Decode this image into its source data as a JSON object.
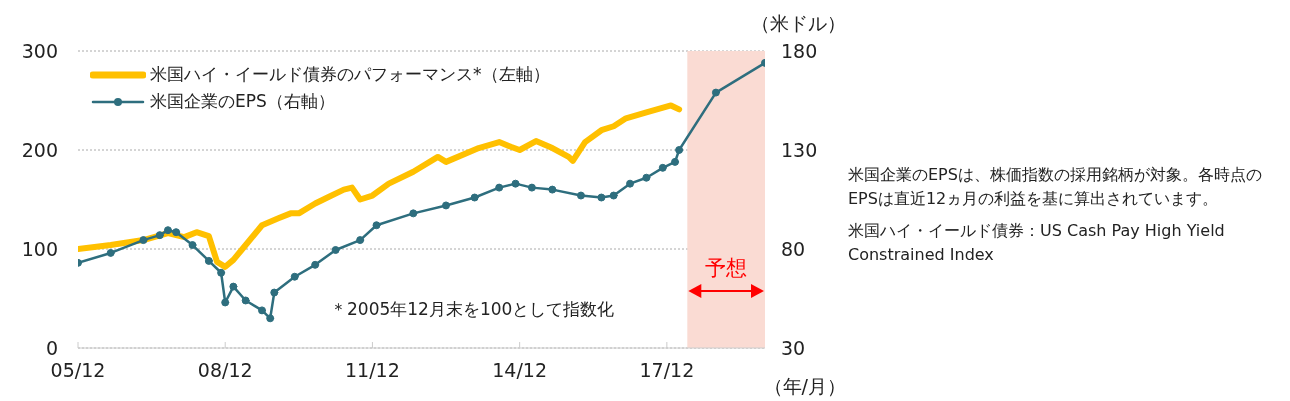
{
  "chart_data": {
    "type": "line",
    "xlabel": "（年/月）",
    "y2label": "（米ドル）",
    "xlim": [
      "2005-12",
      "2019-12"
    ],
    "xticks": [
      {
        "value": "2005-12",
        "label": "05/12"
      },
      {
        "value": "2008-12",
        "label": "08/12"
      },
      {
        "value": "2011-12",
        "label": "11/12"
      },
      {
        "value": "2014-12",
        "label": "14/12"
      },
      {
        "value": "2017-12",
        "label": "17/12"
      }
    ],
    "ylim": [
      0,
      300
    ],
    "yticks": [
      0,
      100,
      200,
      300
    ],
    "y2lim": [
      30,
      180
    ],
    "y2ticks": [
      30,
      80,
      130,
      180
    ],
    "grid": "y",
    "legend": "top left",
    "series": [
      {
        "name": "米国ハイ・イールド債券のパフォーマンス*（左軸）",
        "color": "#ffc000",
        "marker": "none",
        "x": [
          "2005-12",
          "2006-08",
          "2007-04",
          "2007-10",
          "2008-02",
          "2008-05",
          "2008-08",
          "2008-10",
          "2008-12",
          "2009-02",
          "2009-04",
          "2009-09",
          "2010-01",
          "2010-04",
          "2010-06",
          "2010-10",
          "2011-01",
          "2011-05",
          "2011-07",
          "2011-09",
          "2011-12",
          "2012-04",
          "2012-10",
          "2013-04",
          "2013-06",
          "2014-02",
          "2014-07",
          "2014-10",
          "2014-12",
          "2015-04",
          "2015-08",
          "2015-12",
          "2016-01",
          "2016-04",
          "2016-08",
          "2016-11",
          "2017-02",
          "2017-07",
          "2018-01",
          "2018-03"
        ],
        "values": [
          100,
          104,
          109,
          116,
          112,
          117,
          113,
          87,
          82,
          89,
          99,
          124,
          131,
          136,
          136,
          146,
          152,
          160,
          162,
          150,
          154,
          166,
          178,
          193,
          188,
          202,
          208,
          203,
          200,
          209,
          202,
          193,
          189,
          208,
          220,
          224,
          232,
          238,
          245,
          241
        ]
      },
      {
        "name": "米国企業のEPS（右軸）",
        "color": "#2e6e7e",
        "marker": "circle",
        "axis": "y2",
        "x": [
          "2005-12",
          "2006-08",
          "2007-04",
          "2007-08",
          "2007-10",
          "2007-12",
          "2008-04",
          "2008-08",
          "2008-11",
          "2008-12",
          "2009-02",
          "2009-05",
          "2009-09",
          "2009-11",
          "2009-12",
          "2010-05",
          "2010-10",
          "2011-03",
          "2011-09",
          "2012-01",
          "2012-10",
          "2013-06",
          "2014-01",
          "2014-07",
          "2014-11",
          "2015-03",
          "2015-08",
          "2016-03",
          "2016-08",
          "2016-11",
          "2017-03",
          "2017-07",
          "2017-11",
          "2018-02",
          "2018-03",
          "2018-12",
          "2019-12"
        ],
        "values": [
          73,
          78,
          84.5,
          87,
          89.5,
          88.5,
          82,
          74,
          68,
          53,
          61,
          54,
          49,
          45,
          58,
          66,
          72,
          79.5,
          84.5,
          92,
          98,
          102,
          106,
          111,
          113,
          111,
          110,
          107,
          106,
          107,
          113,
          116,
          121,
          124,
          130,
          159,
          174
        ]
      }
    ],
    "bands": [
      {
        "axis": "x",
        "from": "2018-05",
        "to": "2019-12",
        "label": "予想",
        "color": "#fadbd3"
      }
    ],
    "annotations": [
      "＊2005年12月末を100として指数化",
      "米国企業のEPSは、株価指数の採用銘柄が対象。各時点のEPSは直近12ヵ月の利益を基に算出されています。",
      "米国ハイ・イールド債券：US Cash Pay High Yield Constrained Index"
    ]
  }
}
